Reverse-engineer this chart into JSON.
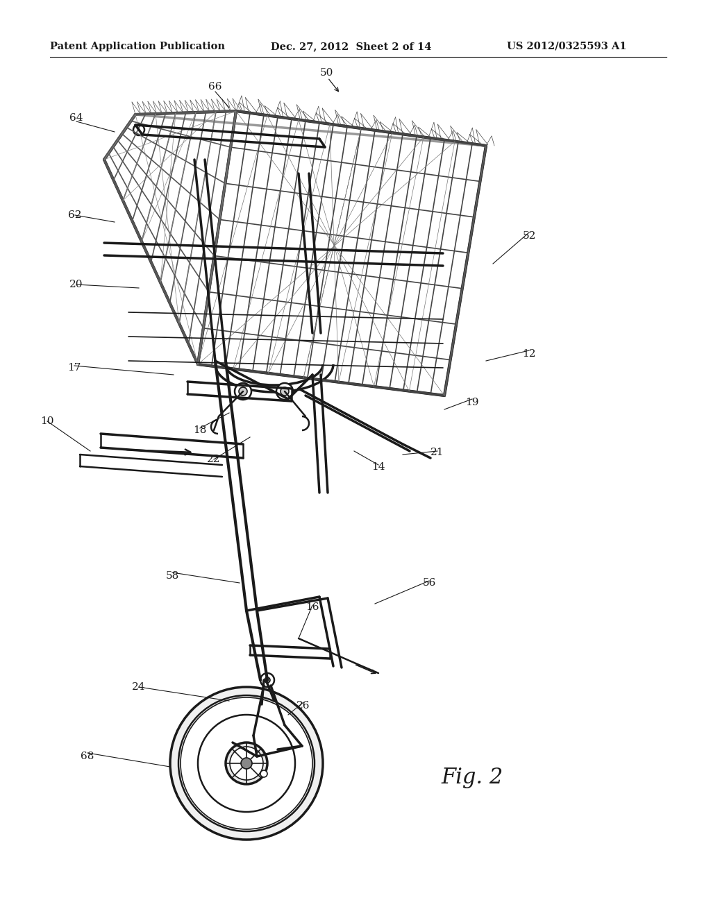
{
  "bg_color": "#ffffff",
  "header_left": "Patent Application Publication",
  "header_mid": "Dec. 27, 2012  Sheet 2 of 14",
  "header_right": "US 2012/0325593 A1",
  "fig_label": "Fig. 2",
  "title_fontsize": 10.5,
  "label_fontsize": 11,
  "fig_label_fontsize": 22,
  "line_color": "#1a1a1a",
  "cart_color": "#2a2a2a",
  "wire_color": "#555555",
  "hatch_color": "#777777"
}
